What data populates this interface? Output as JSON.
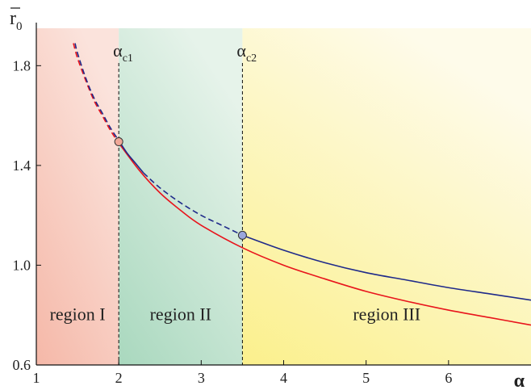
{
  "chart_data": {
    "type": "line",
    "xlabel": "α",
    "ylabel": "r̄₀",
    "ylabel_main": "r",
    "ylabel_sub": "0",
    "xlim": [
      1,
      7
    ],
    "ylim": [
      0.6,
      1.95
    ],
    "x_ticks": [
      1,
      2,
      3,
      4,
      5,
      6
    ],
    "x_tick_labels": [
      "1",
      "2",
      "3",
      "4",
      "5",
      "6"
    ],
    "y_ticks": [
      0.6,
      1.0,
      1.4,
      1.8
    ],
    "y_tick_labels": [
      "0.6",
      "1.0",
      "1.4",
      "1.8"
    ],
    "critical_lines": [
      {
        "x": 2.0,
        "label_main": "α",
        "label_sub": "c1"
      },
      {
        "x": 3.5,
        "label_main": "α",
        "label_sub": "c2"
      }
    ],
    "regions": [
      {
        "label": "region I",
        "x_range": [
          1,
          2
        ],
        "color_from": "#f5b8a8",
        "color_to": "#fbe3dc"
      },
      {
        "label": "region II",
        "x_range": [
          2,
          3.5
        ],
        "color_from": "#a9d8be",
        "color_to": "#e6f3ea"
      },
      {
        "label": "region III",
        "x_range": [
          3.5,
          7
        ],
        "color_from": "#fbf08c",
        "color_to": "#fefbea"
      }
    ],
    "series": [
      {
        "color": "#e8141c",
        "segments": [
          {
            "style": "dashed",
            "x": [
              1.45,
              1.5,
              1.6,
              1.7,
              1.8,
              1.9,
              2.0
            ],
            "y": [
              1.89,
              1.83,
              1.74,
              1.66,
              1.6,
              1.54,
              1.49
            ]
          },
          {
            "style": "solid",
            "x": [
              2.0,
              2.25,
              2.5,
              2.75,
              3.0,
              3.5,
              4.0,
              4.5,
              5.0,
              5.5,
              6.0,
              6.5,
              7.0
            ],
            "y": [
              1.49,
              1.38,
              1.29,
              1.22,
              1.16,
              1.07,
              1.0,
              0.945,
              0.895,
              0.855,
              0.82,
              0.79,
              0.76
            ]
          }
        ]
      },
      {
        "color": "#1f2a8a",
        "segments": [
          {
            "style": "dashed",
            "x": [
              1.47,
              1.5,
              1.6,
              1.7,
              1.8,
              1.9,
              2.0
            ],
            "y": [
              1.89,
              1.85,
              1.75,
              1.67,
              1.61,
              1.55,
              1.5
            ]
          },
          {
            "style": "solid",
            "x": [
              2.0,
              2.1,
              2.2,
              2.3
            ],
            "y": [
              1.5,
              1.45,
              1.41,
              1.37
            ]
          },
          {
            "style": "dashed",
            "x": [
              2.3,
              2.5,
              2.75,
              3.0,
              3.25,
              3.5
            ],
            "y": [
              1.37,
              1.31,
              1.25,
              1.2,
              1.16,
              1.12
            ]
          },
          {
            "style": "solid",
            "x": [
              3.5,
              4.0,
              4.5,
              5.0,
              5.5,
              6.0,
              6.5,
              7.0
            ],
            "y": [
              1.12,
              1.06,
              1.01,
              0.97,
              0.94,
              0.91,
              0.885,
              0.86
            ]
          }
        ]
      }
    ],
    "markers": [
      {
        "x": 2.0,
        "y": 1.495,
        "color": "#f0a898"
      },
      {
        "x": 3.5,
        "y": 1.12,
        "color": "#9aa6dc"
      }
    ]
  }
}
